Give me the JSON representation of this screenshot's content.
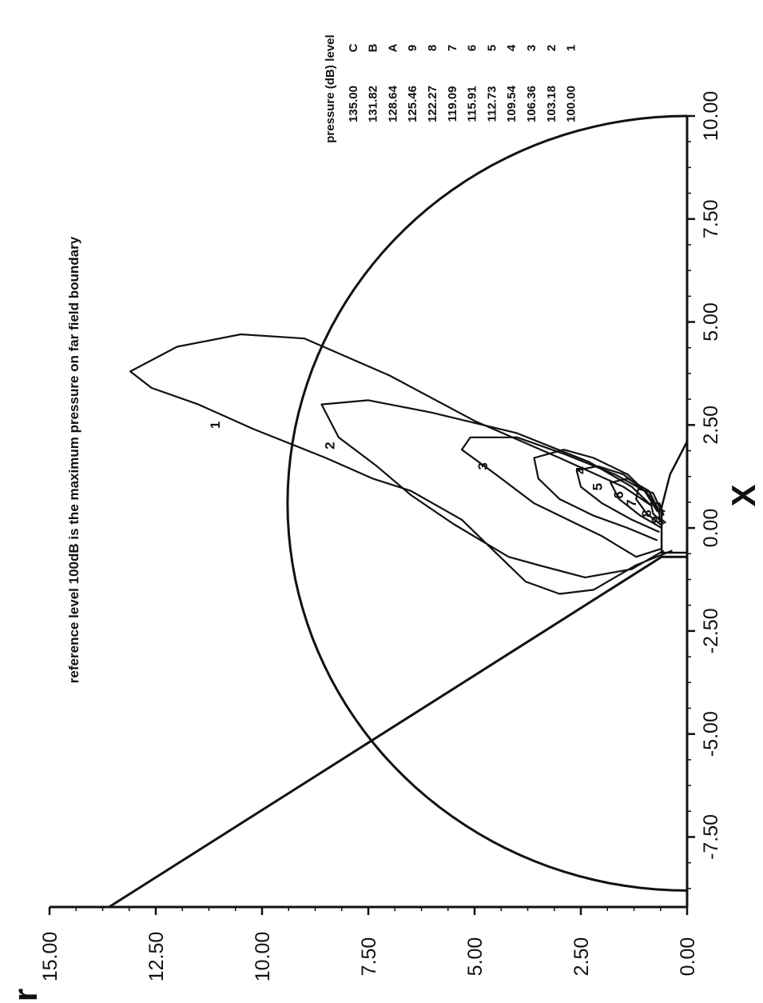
{
  "chart_data": {
    "type": "contour",
    "xlabel": "X",
    "ylabel": "r",
    "xlim": [
      -9.2,
      10.0
    ],
    "ylim": [
      0.0,
      15.0
    ],
    "xticks": [
      "-7.50",
      "-5.00",
      "-2.50",
      "0.00",
      "2.50",
      "5.00",
      "7.50",
      "10.00"
    ],
    "yticks": [
      "0.00",
      "2.50",
      "5.00",
      "7.50",
      "10.00",
      "12.50",
      "15.00"
    ],
    "annotation": "reference level 100dB is the maximum pressure on far field boundary",
    "legend": {
      "header_level": "level",
      "header_value": "pressure (dB)",
      "entries": [
        {
          "level": "C",
          "value": "135.00"
        },
        {
          "level": "B",
          "value": "131.82"
        },
        {
          "level": "A",
          "value": "128.64"
        },
        {
          "level": "9",
          "value": "125.46"
        },
        {
          "level": "8",
          "value": "122.27"
        },
        {
          "level": "7",
          "value": "119.09"
        },
        {
          "level": "6",
          "value": "115.91"
        },
        {
          "level": "5",
          "value": "112.73"
        },
        {
          "level": "4",
          "value": "109.54"
        },
        {
          "level": "3",
          "value": "106.36"
        },
        {
          "level": "2",
          "value": "103.18"
        },
        {
          "level": "1",
          "value": "100.00"
        }
      ]
    },
    "boundary": [
      [
        -9.2,
        13.6
      ],
      [
        -0.7,
        0.6
      ],
      [
        -0.7,
        0.0
      ],
      [
        10.0,
        0.0
      ]
    ],
    "far_field_arc": {
      "center": [
        0.6,
        0.0
      ],
      "radius": 9.4
    },
    "contours": [
      {
        "label": "1",
        "label_at": [
          2.5,
          11.0
        ],
        "points": [
          [
            -0.55,
            0.35
          ],
          [
            -0.9,
            1.2
          ],
          [
            -1.5,
            2.2
          ],
          [
            -1.6,
            3.0
          ],
          [
            -1.3,
            3.8
          ],
          [
            -0.5,
            4.6
          ],
          [
            0.2,
            5.3
          ],
          [
            0.9,
            6.5
          ],
          [
            1.2,
            7.4
          ],
          [
            1.7,
            8.5
          ],
          [
            2.4,
            10.2
          ],
          [
            3.0,
            11.5
          ],
          [
            3.4,
            12.6
          ],
          [
            3.8,
            13.1
          ],
          [
            4.4,
            12.0
          ],
          [
            4.7,
            10.5
          ],
          [
            4.6,
            9.0
          ],
          [
            3.7,
            7.0
          ],
          [
            2.6,
            5.0
          ],
          [
            1.7,
            3.0
          ],
          [
            1.0,
            1.5
          ],
          [
            0.55,
            0.85
          ]
        ]
      },
      {
        "label": "2",
        "label_at": [
          2.0,
          8.3
        ],
        "points": [
          [
            -0.55,
            0.55
          ],
          [
            -1.0,
            1.3
          ],
          [
            -1.2,
            2.4
          ],
          [
            -0.9,
            3.5
          ],
          [
            -0.7,
            4.2
          ],
          [
            0.1,
            5.5
          ],
          [
            0.8,
            6.5
          ],
          [
            1.5,
            7.3
          ],
          [
            2.2,
            8.2
          ],
          [
            3.0,
            8.6
          ],
          [
            3.1,
            7.5
          ],
          [
            2.8,
            6.0
          ],
          [
            2.3,
            4.0
          ],
          [
            1.6,
            2.3
          ],
          [
            1.0,
            1.3
          ],
          [
            0.55,
            0.85
          ]
        ]
      },
      {
        "label": "3",
        "label_at": [
          1.5,
          4.7
        ],
        "points": [
          [
            -0.5,
            0.6
          ],
          [
            -0.7,
            1.2
          ],
          [
            -0.2,
            2.0
          ],
          [
            0.1,
            2.6
          ],
          [
            0.6,
            3.6
          ],
          [
            1.3,
            4.5
          ],
          [
            1.9,
            5.3
          ],
          [
            2.2,
            5.1
          ],
          [
            2.2,
            4.0
          ],
          [
            1.8,
            2.9
          ],
          [
            1.3,
            1.7
          ],
          [
            0.9,
            1.0
          ],
          [
            0.5,
            0.7
          ]
        ]
      },
      {
        "label": "4",
        "label_at": [
          1.4,
          2.4
        ],
        "points": [
          [
            -0.3,
            0.7
          ],
          [
            0.0,
            1.4
          ],
          [
            0.3,
            2.2
          ],
          [
            0.7,
            3.0
          ],
          [
            1.2,
            3.5
          ],
          [
            1.7,
            3.6
          ],
          [
            1.9,
            2.9
          ],
          [
            1.7,
            2.2
          ],
          [
            1.3,
            1.4
          ],
          [
            0.8,
            0.9
          ],
          [
            0.35,
            0.65
          ]
        ]
      },
      {
        "label": "5",
        "label_at": [
          1.0,
          2.0
        ],
        "points": [
          [
            -0.1,
            0.65
          ],
          [
            0.2,
            1.3
          ],
          [
            0.6,
            2.0
          ],
          [
            1.0,
            2.5
          ],
          [
            1.4,
            2.6
          ],
          [
            1.5,
            2.1
          ],
          [
            1.3,
            1.5
          ],
          [
            0.9,
            1.0
          ],
          [
            0.4,
            0.7
          ]
        ]
      },
      {
        "label": "6",
        "label_at": [
          0.8,
          1.5
        ],
        "points": [
          [
            0.0,
            0.6
          ],
          [
            0.3,
            1.1
          ],
          [
            0.7,
            1.6
          ],
          [
            1.1,
            1.8
          ],
          [
            1.2,
            1.4
          ],
          [
            0.9,
            0.9
          ],
          [
            0.4,
            0.65
          ]
        ]
      },
      {
        "label": "7",
        "label_at": [
          0.6,
          1.2
        ],
        "points": [
          [
            0.05,
            0.58
          ],
          [
            0.35,
            0.95
          ],
          [
            0.7,
            1.2
          ],
          [
            0.95,
            1.15
          ],
          [
            0.85,
            0.8
          ],
          [
            0.4,
            0.6
          ]
        ]
      },
      {
        "label": "8",
        "label_at": [
          0.35,
          0.85
        ],
        "points": [
          [
            0.1,
            0.55
          ],
          [
            0.35,
            0.8
          ],
          [
            0.6,
            0.85
          ],
          [
            0.6,
            0.65
          ],
          [
            0.3,
            0.55
          ]
        ]
      },
      {
        "label": "9",
        "label_at": [
          0.2,
          0.62
        ],
        "points": [
          [
            0.12,
            0.5
          ],
          [
            0.25,
            0.65
          ],
          [
            0.45,
            0.65
          ],
          [
            0.4,
            0.52
          ]
        ]
      }
    ],
    "nacelle": [
      [
        -0.6,
        0.0
      ],
      [
        -0.6,
        0.6
      ],
      [
        0.5,
        0.6
      ],
      [
        0.9,
        0.5
      ],
      [
        1.3,
        0.4
      ],
      [
        1.7,
        0.2
      ],
      [
        2.1,
        0.0
      ]
    ]
  }
}
